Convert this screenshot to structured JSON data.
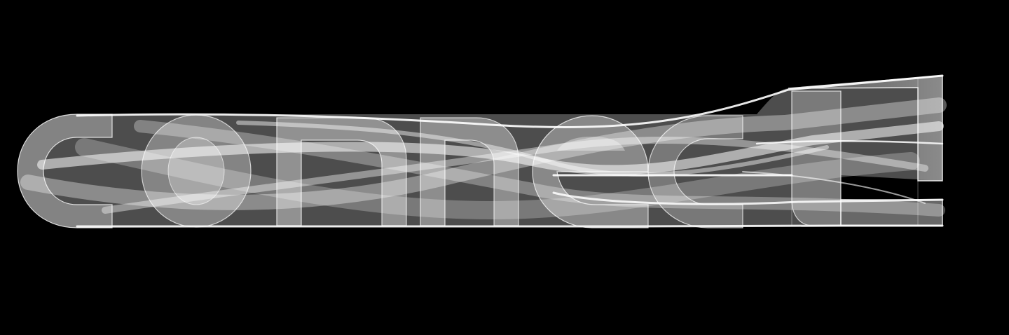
{
  "artwork": {
    "word": "connect",
    "background_color": "#000000",
    "ribbon_color": "#ffffff",
    "style": "translucent white ribbon letters stretched into long swept bands"
  }
}
